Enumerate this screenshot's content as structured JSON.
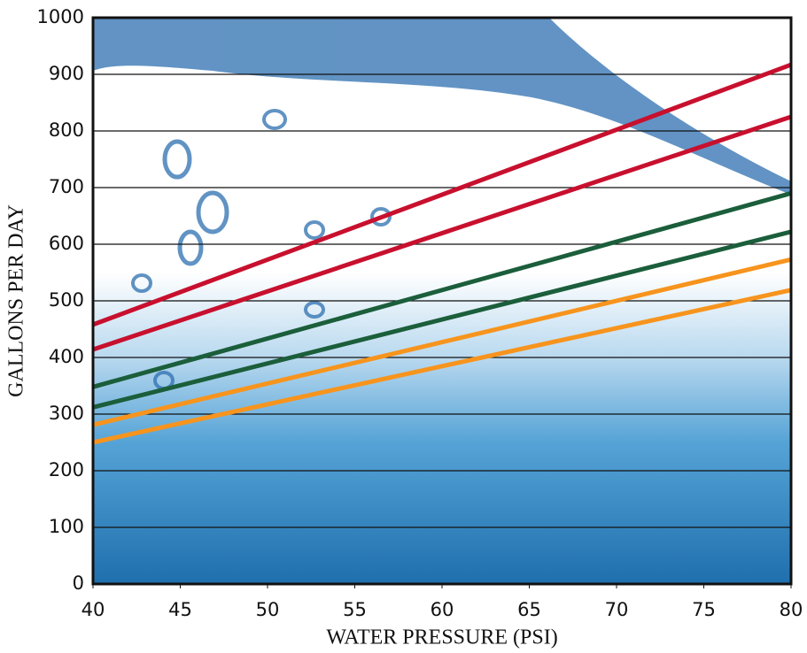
{
  "chart_data": {
    "type": "line",
    "x_label": "WATER PRESSURE (PSI)",
    "y_label": "GALLONS PER DAY",
    "x": [
      40,
      80
    ],
    "series": [
      {
        "color": "#c8102e",
        "values": [
          458,
          917
        ]
      },
      {
        "color": "#c8102e",
        "values": [
          414,
          825
        ]
      },
      {
        "color": "#1b5e3b",
        "values": [
          348,
          690
        ]
      },
      {
        "color": "#1b5e3b",
        "values": [
          312,
          622
        ]
      },
      {
        "color": "#f7941d",
        "values": [
          281,
          573
        ]
      },
      {
        "color": "#f7941d",
        "values": [
          250,
          519
        ]
      }
    ],
    "xlim": [
      40,
      80
    ],
    "xticks": [
      40,
      45,
      50,
      55,
      60,
      65,
      70,
      75,
      80
    ],
    "ylim": [
      0,
      1000
    ],
    "yticks": [
      0,
      100,
      200,
      300,
      400,
      500,
      600,
      700,
      800,
      900,
      1000
    ],
    "grid": true
  }
}
